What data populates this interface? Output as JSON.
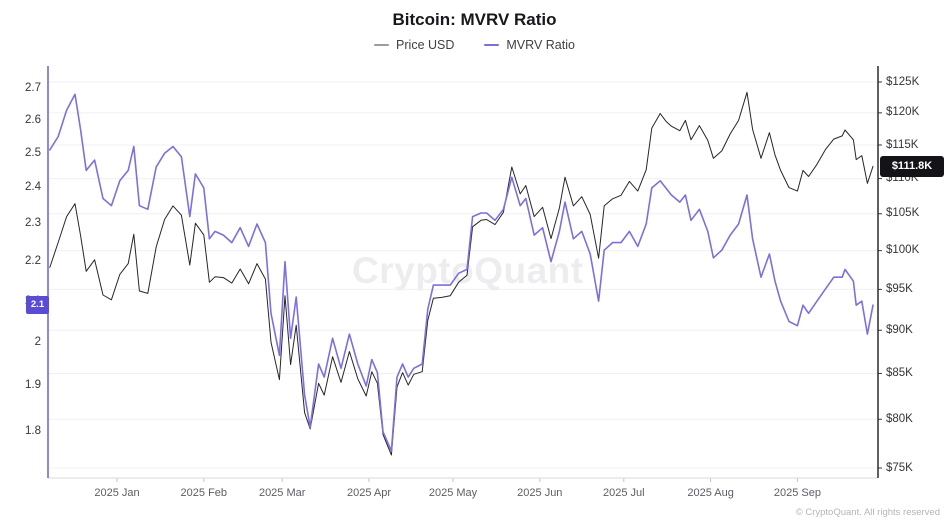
{
  "title": "Bitcoin: MVRV Ratio",
  "legend": [
    {
      "label": "Price USD",
      "color": "#9b9ba3"
    },
    {
      "label": "MVRV Ratio",
      "color": "#7d6fe0"
    }
  ],
  "watermark": "CryptoQuant",
  "footer": "© CryptoQuant. All rights reserved",
  "badges": {
    "mvrv": {
      "label": "2.1",
      "value": 2.09,
      "bg": "#5b4cd6"
    },
    "price": {
      "label": "$111.8K",
      "value": 111.8,
      "bg": "#141418"
    }
  },
  "chart_data": {
    "type": "line",
    "title": "Bitcoin: MVRV Ratio",
    "grid": true,
    "legend_position": "top",
    "left_axis": {
      "name": "MVRV Ratio",
      "scale": "log",
      "range": [
        1.72,
        2.75
      ],
      "tick_labels": [
        "2.7",
        "2.6",
        "2.5",
        "2.4",
        "2.3",
        "2.2",
        "2.1",
        "2",
        "1.9",
        "1.8"
      ],
      "tick_values": [
        2.7,
        2.6,
        2.5,
        2.4,
        2.3,
        2.2,
        2.1,
        2.0,
        1.9,
        1.8
      ],
      "axis_color": "#6e5fd9",
      "current_value": 2.09
    },
    "right_axis": {
      "name": "Price USD",
      "scale": "log",
      "range": [
        74,
        126
      ],
      "unit": "USD thousands",
      "tick_labels": [
        "$125K",
        "$120K",
        "$115K",
        "$110K",
        "$105K",
        "$100K",
        "$95K",
        "$90K",
        "$85K",
        "$80K",
        "$75K"
      ],
      "tick_values": [
        125,
        120,
        115,
        110,
        105,
        100,
        95,
        90,
        85,
        80,
        75
      ],
      "axis_color": "#2a2a30",
      "current_value": 111.8
    },
    "x_ticks": [
      {
        "label": "2025 Jan",
        "date": "2025-01-01"
      },
      {
        "label": "2025 Feb",
        "date": "2025-02-01"
      },
      {
        "label": "2025 Mar",
        "date": "2025-03-01"
      },
      {
        "label": "2025 Apr",
        "date": "2025-04-01"
      },
      {
        "label": "2025 May",
        "date": "2025-05-01"
      },
      {
        "label": "2025 Jun",
        "date": "2025-06-01"
      },
      {
        "label": "2025 Jul",
        "date": "2025-07-01"
      },
      {
        "label": "2025 Aug",
        "date": "2025-08-01"
      },
      {
        "label": "2025 Sep",
        "date": "2025-09-01"
      }
    ],
    "dates": [
      "2024-12-08",
      "2024-12-11",
      "2024-12-14",
      "2024-12-17",
      "2024-12-19",
      "2024-12-21",
      "2024-12-24",
      "2024-12-27",
      "2024-12-30",
      "2025-01-02",
      "2025-01-05",
      "2025-01-07",
      "2025-01-09",
      "2025-01-12",
      "2025-01-15",
      "2025-01-18",
      "2025-01-21",
      "2025-01-24",
      "2025-01-27",
      "2025-01-29",
      "2025-02-01",
      "2025-02-03",
      "2025-02-05",
      "2025-02-08",
      "2025-02-11",
      "2025-02-14",
      "2025-02-17",
      "2025-02-20",
      "2025-02-23",
      "2025-02-25",
      "2025-02-28",
      "2025-03-02",
      "2025-03-04",
      "2025-03-06",
      "2025-03-09",
      "2025-03-11",
      "2025-03-14",
      "2025-03-16",
      "2025-03-19",
      "2025-03-22",
      "2025-03-25",
      "2025-03-28",
      "2025-03-31",
      "2025-04-02",
      "2025-04-04",
      "2025-04-06",
      "2025-04-09",
      "2025-04-11",
      "2025-04-13",
      "2025-04-15",
      "2025-04-17",
      "2025-04-20",
      "2025-04-22",
      "2025-04-24",
      "2025-04-27",
      "2025-04-30",
      "2025-05-03",
      "2025-05-06",
      "2025-05-08",
      "2025-05-11",
      "2025-05-13",
      "2025-05-16",
      "2025-05-19",
      "2025-05-22",
      "2025-05-25",
      "2025-05-27",
      "2025-05-30",
      "2025-06-02",
      "2025-06-05",
      "2025-06-08",
      "2025-06-10",
      "2025-06-13",
      "2025-06-16",
      "2025-06-19",
      "2025-06-22",
      "2025-06-24",
      "2025-06-27",
      "2025-06-30",
      "2025-07-03",
      "2025-07-06",
      "2025-07-09",
      "2025-07-11",
      "2025-07-14",
      "2025-07-16",
      "2025-07-18",
      "2025-07-21",
      "2025-07-23",
      "2025-07-25",
      "2025-07-28",
      "2025-07-31",
      "2025-08-02",
      "2025-08-05",
      "2025-08-08",
      "2025-08-11",
      "2025-08-14",
      "2025-08-16",
      "2025-08-19",
      "2025-08-22",
      "2025-08-24",
      "2025-08-26",
      "2025-08-29",
      "2025-09-01",
      "2025-09-03",
      "2025-09-05",
      "2025-09-08",
      "2025-09-11",
      "2025-09-14",
      "2025-09-17",
      "2025-09-18",
      "2025-09-21",
      "2025-09-22",
      "2025-09-24",
      "2025-09-26",
      "2025-09-28"
    ],
    "series": [
      {
        "name": "Price USD",
        "axis": "right",
        "color": "#26262b",
        "width": 1,
        "values": [
          97.8,
          101.1,
          104.6,
          106.4,
          102.0,
          97.3,
          98.8,
          94.3,
          93.7,
          96.9,
          98.3,
          102.2,
          94.8,
          94.5,
          100.5,
          104.2,
          106.1,
          104.8,
          98.1,
          103.7,
          102.1,
          95.9,
          96.6,
          96.5,
          95.8,
          97.6,
          95.7,
          98.3,
          96.3,
          88.6,
          84.3,
          94.2,
          86.0,
          90.6,
          80.7,
          79.0,
          83.9,
          82.6,
          86.9,
          84.0,
          87.5,
          84.4,
          82.5,
          85.2,
          83.9,
          78.4,
          76.3,
          83.5,
          85.1,
          83.7,
          84.9,
          85.2,
          91.2,
          93.9,
          94.0,
          94.2,
          95.9,
          96.8,
          103.2,
          104.1,
          104.2,
          103.5,
          105.2,
          111.7,
          107.8,
          109.0,
          104.6,
          105.9,
          101.6,
          105.8,
          110.2,
          106.1,
          107.4,
          104.9,
          99.0,
          106.1,
          107.1,
          107.6,
          109.6,
          108.2,
          111.3,
          117.6,
          119.9,
          118.7,
          117.9,
          117.2,
          118.8,
          115.8,
          118.0,
          115.7,
          113.0,
          114.1,
          116.7,
          118.8,
          123.3,
          117.4,
          113.0,
          116.9,
          113.5,
          111.2,
          108.7,
          108.2,
          111.2,
          110.3,
          112.1,
          114.3,
          115.9,
          116.4,
          117.3,
          115.8,
          112.8,
          113.4,
          109.3,
          111.8
        ]
      },
      {
        "name": "MVRV Ratio",
        "axis": "left",
        "color": "#7d6fe0",
        "width": 1.6,
        "values": [
          2.51,
          2.55,
          2.63,
          2.68,
          2.57,
          2.45,
          2.48,
          2.37,
          2.35,
          2.42,
          2.45,
          2.52,
          2.35,
          2.34,
          2.46,
          2.5,
          2.52,
          2.49,
          2.32,
          2.44,
          2.4,
          2.26,
          2.28,
          2.27,
          2.25,
          2.29,
          2.24,
          2.3,
          2.25,
          2.07,
          1.97,
          2.2,
          2.01,
          2.11,
          1.88,
          1.81,
          1.95,
          1.92,
          2.01,
          1.94,
          2.02,
          1.95,
          1.9,
          1.96,
          1.93,
          1.8,
          1.76,
          1.92,
          1.95,
          1.92,
          1.94,
          1.95,
          2.08,
          2.14,
          2.14,
          2.14,
          2.17,
          2.18,
          2.32,
          2.33,
          2.33,
          2.31,
          2.34,
          2.43,
          2.35,
          2.37,
          2.27,
          2.29,
          2.2,
          2.28,
          2.36,
          2.26,
          2.28,
          2.22,
          2.1,
          2.23,
          2.25,
          2.25,
          2.28,
          2.24,
          2.3,
          2.4,
          2.42,
          2.4,
          2.38,
          2.36,
          2.38,
          2.31,
          2.34,
          2.28,
          2.21,
          2.23,
          2.27,
          2.3,
          2.38,
          2.26,
          2.16,
          2.22,
          2.15,
          2.1,
          2.05,
          2.04,
          2.09,
          2.07,
          2.1,
          2.13,
          2.16,
          2.16,
          2.18,
          2.15,
          2.09,
          2.1,
          2.02,
          2.09
        ]
      }
    ]
  }
}
